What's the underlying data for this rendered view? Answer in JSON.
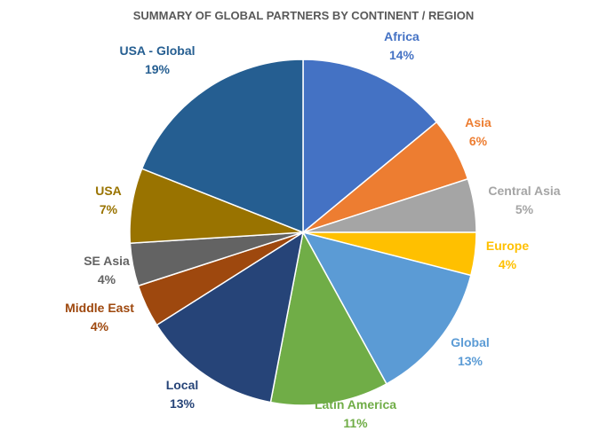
{
  "chart_data": {
    "type": "pie",
    "title": "SUMMARY OF GLOBAL PARTNERS BY CONTINENT / REGION",
    "slices": [
      {
        "label": "Africa",
        "percent_text": "14%",
        "value": 14,
        "color": "#4472C4",
        "label_color": "#4472C4"
      },
      {
        "label": "Asia",
        "percent_text": "6%",
        "value": 6,
        "color": "#ED7D31",
        "label_color": "#ED7D31"
      },
      {
        "label": "Central Asia",
        "percent_text": "5%",
        "value": 5,
        "color": "#A5A5A5",
        "label_color": "#A5A5A5"
      },
      {
        "label": "Europe",
        "percent_text": "4%",
        "value": 4,
        "color": "#FFC000",
        "label_color": "#FFC000"
      },
      {
        "label": "Global",
        "percent_text": "13%",
        "value": 13,
        "color": "#5B9BD5",
        "label_color": "#5B9BD5"
      },
      {
        "label": "Latin America",
        "percent_text": "11%",
        "value": 11,
        "color": "#70AD47",
        "label_color": "#70AD47"
      },
      {
        "label": "Local",
        "percent_text": "13%",
        "value": 13,
        "color": "#264478",
        "label_color": "#264478"
      },
      {
        "label": "Middle East",
        "percent_text": "4%",
        "value": 4,
        "color": "#9E480E",
        "label_color": "#9E480E"
      },
      {
        "label": "SE Asia",
        "percent_text": "4%",
        "value": 4,
        "color": "#636363",
        "label_color": "#636363"
      },
      {
        "label": "USA",
        "percent_text": "7%",
        "value": 7,
        "color": "#997300",
        "label_color": "#997300"
      },
      {
        "label": "USA - Global",
        "percent_text": "19%",
        "value": 19,
        "color": "#255E91",
        "label_color": "#255E91"
      }
    ],
    "start": "12 o'clock",
    "direction": "clockwise",
    "legend": "none",
    "data_labels": "outside"
  }
}
